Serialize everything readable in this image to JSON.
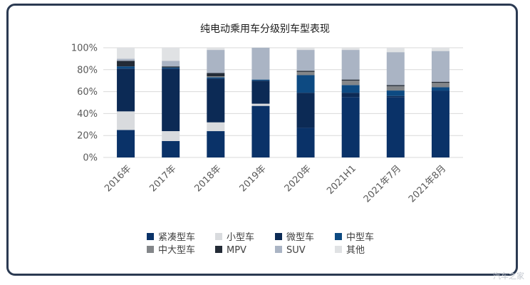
{
  "chart_data": {
    "type": "bar",
    "stacked": true,
    "normalized": true,
    "title": "纯电动乘用车分级别车型表现",
    "xlabel": "",
    "ylabel": "",
    "ylim": [
      0,
      100
    ],
    "yticks": [
      "0%",
      "20%",
      "40%",
      "60%",
      "80%",
      "100%"
    ],
    "grid": true,
    "legend_position": "bottom",
    "categories": [
      "2016年",
      "2017年",
      "2018年",
      "2019年",
      "2020年",
      "2021H1",
      "2021年7月",
      "2021年8月"
    ],
    "series": [
      {
        "name": "紧凑型车",
        "color": "#0a3268",
        "values": [
          25,
          15,
          24,
          47,
          27,
          55,
          55,
          61
        ]
      },
      {
        "name": "小型车",
        "color": "#d9dbde",
        "values": [
          17,
          9,
          8,
          2,
          0,
          0,
          0,
          0
        ]
      },
      {
        "name": "微型车",
        "color": "#0c2a55",
        "values": [
          39,
          57,
          40,
          21,
          32,
          4,
          1,
          0
        ]
      },
      {
        "name": "中型车",
        "color": "#0d4a82",
        "values": [
          2,
          1,
          1,
          1,
          16,
          7,
          5,
          3
        ]
      },
      {
        "name": "中大型车",
        "color": "#838689",
        "values": [
          0,
          0,
          1,
          0,
          3,
          4,
          4,
          4
        ]
      },
      {
        "name": "MPV",
        "color": "#232b36",
        "values": [
          5,
          1,
          3,
          0,
          1,
          1,
          1,
          1
        ]
      },
      {
        "name": "SUV",
        "color": "#aab4c4",
        "values": [
          2,
          5,
          21,
          29,
          19,
          27,
          30,
          28
        ]
      },
      {
        "name": "其他",
        "color": "#e0e2e4",
        "values": [
          10,
          12,
          2,
          0,
          2,
          2,
          4,
          3
        ]
      }
    ]
  },
  "watermark": "汽车之家"
}
